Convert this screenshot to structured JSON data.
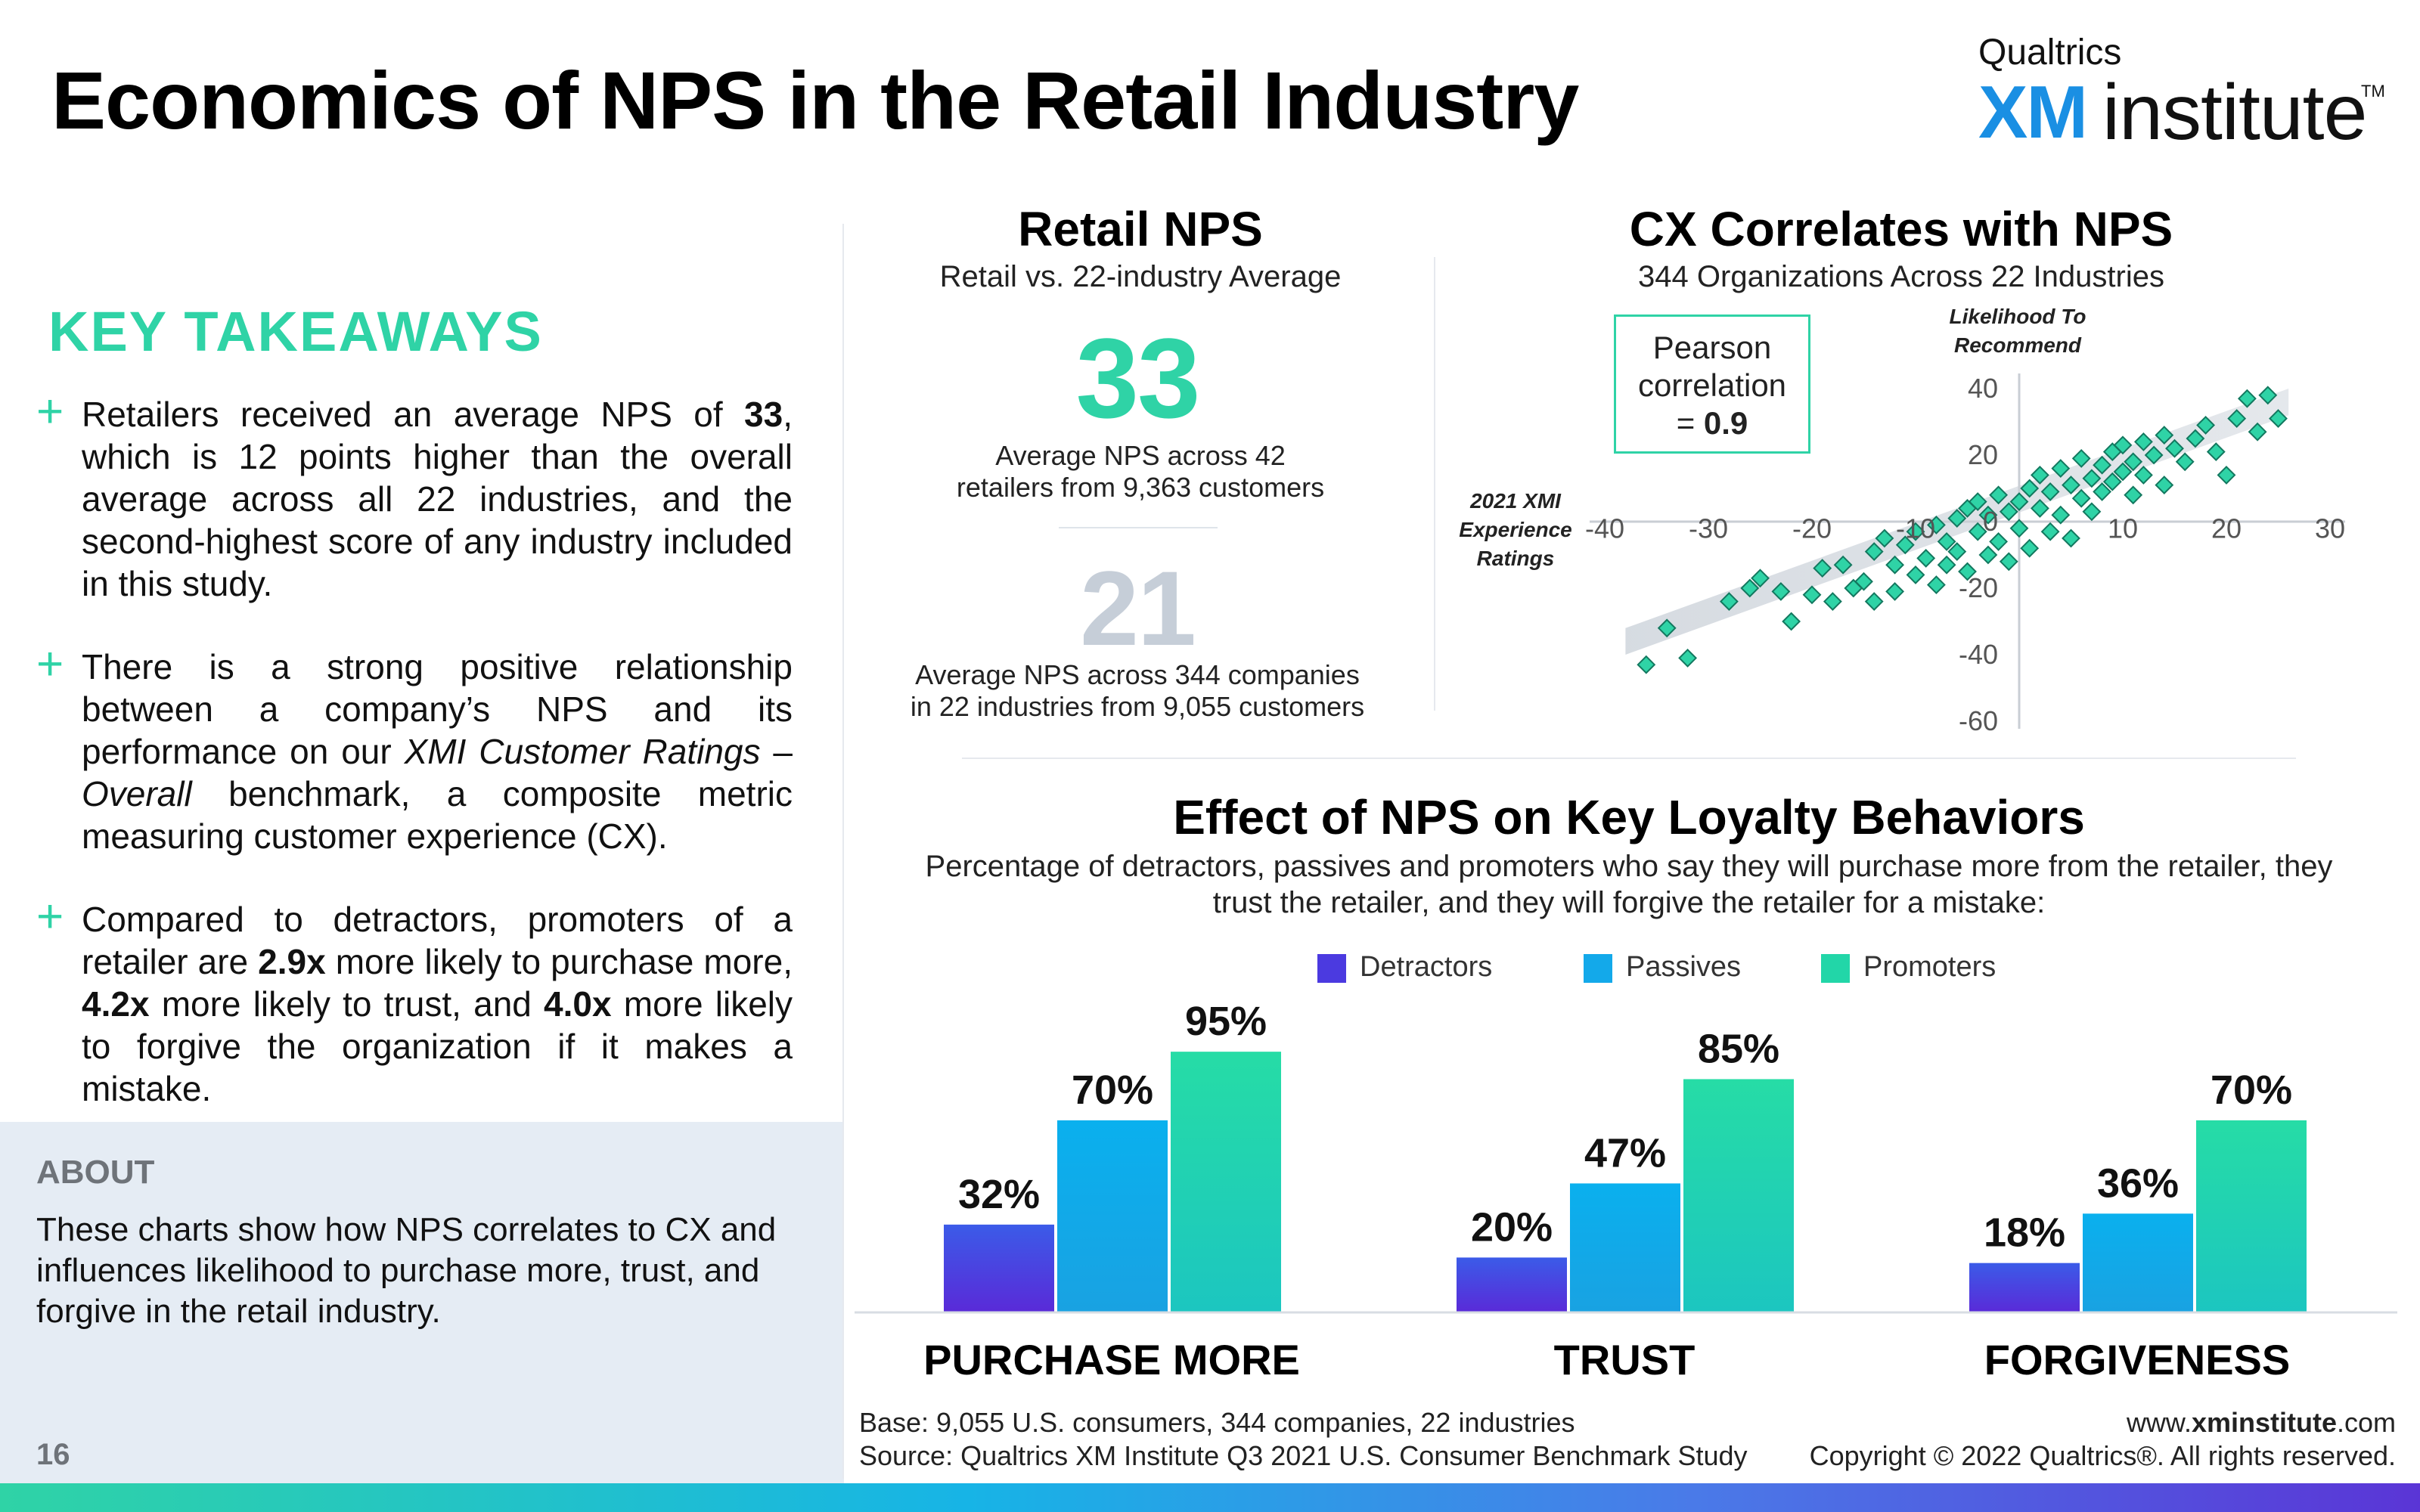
{
  "header": {
    "title": "Economics of NPS in the Retail Industry",
    "logo_company": "Qualtrics",
    "logo_xm": "XM",
    "logo_institute": "institute",
    "logo_tm": "TM"
  },
  "left": {
    "key_takeaways_heading": "KEY TAKEAWAYS",
    "bullet_icon": "plus-icon",
    "takeaway1": {
      "pre": "Retailers received an average NPS of ",
      "bold": "33",
      "post": ", which is 12 points higher than the overall average across all 22 industries, and the second-highest score of any industry included in this study."
    },
    "takeaway2": {
      "pre": "There is a strong positive relationship between a company’s NPS and its performance on our ",
      "italic1": "XMI Customer Ratings",
      "mid": " – ",
      "italic2": "Overall",
      "post": " benchmark, a composite metric measuring customer experience (CX)."
    },
    "takeaway3": {
      "a": "Compared to detractors, promoters of a retailer are ",
      "b1": "2.9x",
      "c": " more likely to purchase more, ",
      "b2": "4.2x",
      "d": " more likely to trust, and ",
      "b3": "4.0x",
      "e": " more likely to forgive the organization if it makes a mistake."
    },
    "about_heading": "ABOUT",
    "about_text": "These charts show how NPS correlates to CX and influences likelihood to purchase more, trust, and forgive in the retail industry.",
    "page_number": "16"
  },
  "retail_nps": {
    "title": "Retail NPS",
    "subtitle": "Retail vs. 22-industry Average",
    "retail_value": "33",
    "retail_desc_line1": "Average NPS across 42",
    "retail_desc_line2": "retailers from 9,363 customers",
    "avg_value": "21",
    "avg_desc_line1": "Average NPS across 344 companies",
    "avg_desc_line2": "in 22 industries from 9,055 customers"
  },
  "correlation": {
    "title": "CX Correlates with NPS",
    "subtitle": "344 Organizations Across 22 Industries",
    "pearson_line1": "Pearson",
    "pearson_line2": "correlation",
    "pearson_prefix": "= ",
    "pearson_value": "0.9",
    "y_label_line1": "Likelihood To",
    "y_label_line2": "Recommend",
    "x_label_line1": "2021 XMI",
    "x_label_line2": "Experience",
    "x_label_line3": "Ratings"
  },
  "loyalty": {
    "title": "Effect of NPS on Key Loyalty Behaviors",
    "subtitle_line1": "Percentage of detractors, passives and promoters who say they will purchase more from the retailer, they",
    "subtitle_line2": "trust the retailer, and they will forgive the retailer for a mistake:"
  },
  "colors": {
    "accent_green": "#2fd3a6",
    "detractors": "#4b3ae0",
    "passives": "#13a9ea",
    "promoters": "#22d6a8",
    "muted_gray": "#c6ced8"
  },
  "footer": {
    "base": "Base: 9,055 U.S. consumers, 344 companies, 22 industries",
    "source": "Source: Qualtrics XM Institute Q3 2021 U.S. Consumer Benchmark Study",
    "site_pre": "www.",
    "site_bold": "xminstitute",
    "site_post": ".com",
    "copyright": "Copyright © 2022 Qualtrics®. All rights reserved."
  },
  "chart_data": [
    {
      "type": "scatter",
      "title": "CX Correlates with NPS",
      "xlabel": "2021 XMI Experience Ratings",
      "ylabel": "Likelihood To Recommend",
      "xlim": [
        -40,
        30
      ],
      "ylim": [
        -60,
        40
      ],
      "x_ticks": [
        -40,
        -30,
        -20,
        -10,
        0,
        10,
        20,
        30
      ],
      "y_ticks": [
        -60,
        -40,
        -20,
        0,
        20,
        40
      ],
      "grid": false,
      "points": [
        [
          -36,
          -43
        ],
        [
          -34,
          -32
        ],
        [
          -32,
          -41
        ],
        [
          -28,
          -24
        ],
        [
          -26,
          -20
        ],
        [
          -25,
          -17
        ],
        [
          -23,
          -21
        ],
        [
          -22,
          -30
        ],
        [
          -20,
          -22
        ],
        [
          -19,
          -14
        ],
        [
          -18,
          -24
        ],
        [
          -17,
          -13
        ],
        [
          -16,
          -20
        ],
        [
          -15,
          -18
        ],
        [
          -14,
          -9
        ],
        [
          -14,
          -24
        ],
        [
          -13,
          -5
        ],
        [
          -12,
          -13
        ],
        [
          -12,
          -21
        ],
        [
          -11,
          -7
        ],
        [
          -10,
          -3
        ],
        [
          -10,
          -16
        ],
        [
          -9,
          -11
        ],
        [
          -8,
          -1
        ],
        [
          -8,
          -19
        ],
        [
          -7,
          -6
        ],
        [
          -7,
          -13
        ],
        [
          -6,
          1
        ],
        [
          -6,
          -9
        ],
        [
          -5,
          4
        ],
        [
          -5,
          -15
        ],
        [
          -4,
          -3
        ],
        [
          -4,
          6
        ],
        [
          -3,
          -10
        ],
        [
          -3,
          2
        ],
        [
          -2,
          8
        ],
        [
          -2,
          -6
        ],
        [
          -1,
          3
        ],
        [
          -1,
          -12
        ],
        [
          0,
          6
        ],
        [
          0,
          -2
        ],
        [
          1,
          10
        ],
        [
          1,
          -8
        ],
        [
          2,
          4
        ],
        [
          2,
          14
        ],
        [
          3,
          -3
        ],
        [
          3,
          9
        ],
        [
          4,
          16
        ],
        [
          4,
          2
        ],
        [
          5,
          11
        ],
        [
          5,
          -5
        ],
        [
          6,
          7
        ],
        [
          6,
          19
        ],
        [
          7,
          13
        ],
        [
          7,
          3
        ],
        [
          8,
          17
        ],
        [
          8,
          9
        ],
        [
          9,
          21
        ],
        [
          9,
          12
        ],
        [
          10,
          15
        ],
        [
          10,
          23
        ],
        [
          11,
          18
        ],
        [
          11,
          8
        ],
        [
          12,
          24
        ],
        [
          12,
          14
        ],
        [
          13,
          20
        ],
        [
          14,
          26
        ],
        [
          14,
          11
        ],
        [
          15,
          22
        ],
        [
          16,
          18
        ],
        [
          17,
          25
        ],
        [
          18,
          29
        ],
        [
          19,
          21
        ],
        [
          20,
          14
        ],
        [
          21,
          31
        ],
        [
          22,
          37
        ],
        [
          23,
          27
        ],
        [
          24,
          38
        ],
        [
          25,
          31
        ]
      ]
    },
    {
      "type": "bar",
      "title": "Effect of NPS on Key Loyalty Behaviors",
      "categories": [
        "PURCHASE MORE",
        "TRUST",
        "FORGIVENESS"
      ],
      "series": [
        {
          "name": "Detractors",
          "values": [
            32,
            20,
            18
          ]
        },
        {
          "name": "Passives",
          "values": [
            70,
            47,
            36
          ]
        },
        {
          "name": "Promoters",
          "values": [
            95,
            85,
            70
          ]
        }
      ],
      "value_format": "%",
      "legend": "top-center"
    }
  ]
}
